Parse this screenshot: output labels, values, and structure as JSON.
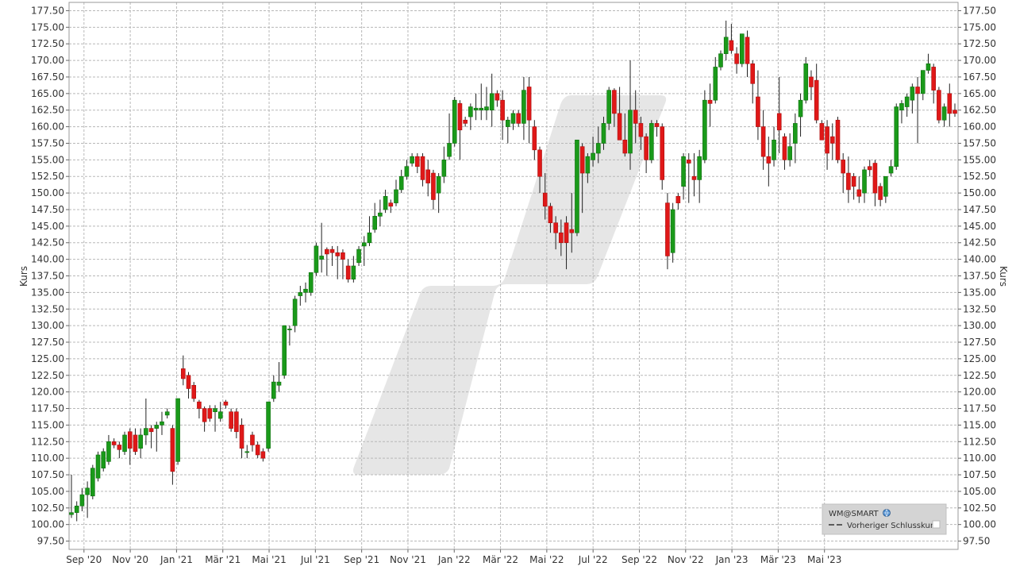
{
  "chart_data": {
    "type": "candlestick",
    "ylabel_left": "Kurs",
    "ylabel_right": "Kurs",
    "ylim": [
      96.25,
      178.75
    ],
    "y_ticks": [
      97.5,
      100.0,
      102.5,
      105.0,
      107.5,
      110.0,
      112.5,
      115.0,
      117.5,
      120.0,
      122.5,
      125.0,
      127.5,
      130.0,
      132.5,
      135.0,
      137.5,
      140.0,
      142.5,
      145.0,
      147.5,
      150.0,
      152.5,
      155.0,
      157.5,
      160.0,
      162.5,
      165.0,
      167.5,
      170.0,
      172.5,
      175.0,
      177.5
    ],
    "x_ticks": [
      "Sep '20",
      "Nov '20",
      "Jan '21",
      "Mär '21",
      "Mai '21",
      "Jul '21",
      "Sep '21",
      "Nov '21",
      "Jan '22",
      "Mär '22",
      "Mai '22",
      "Jul '22",
      "Sep '22",
      "Nov '22",
      "Jan '23",
      "Mär '23",
      "Mai '23"
    ],
    "grid": true,
    "legend_position": "bottom-right",
    "legend": {
      "title": "WM@SMART",
      "items": [
        "Vorheriger Schlusskurs"
      ]
    },
    "colors": {
      "up": "#1a9a1a",
      "down": "#e01818",
      "grid": "#b8b8b8",
      "background": "#ffffff",
      "text": "#333333"
    },
    "weekly_ohlc": [
      [
        101.5,
        107.5,
        101.0,
        101.8
      ],
      [
        101.8,
        103.5,
        100.5,
        102.8
      ],
      [
        102.8,
        105.5,
        102.0,
        104.5
      ],
      [
        104.5,
        106.5,
        101.0,
        105.5
      ],
      [
        104.3,
        109.0,
        103.8,
        108.5
      ],
      [
        107.0,
        111.0,
        106.5,
        110.5
      ],
      [
        108.5,
        111.5,
        108.0,
        111.0
      ],
      [
        109.5,
        113.5,
        109.0,
        112.5
      ],
      [
        112.5,
        113.0,
        111.5,
        112.0
      ],
      [
        112.0,
        112.5,
        110.0,
        111.3
      ],
      [
        111.0,
        114.0,
        110.5,
        113.5
      ],
      [
        114.0,
        114.5,
        109.0,
        111.5
      ],
      [
        113.5,
        114.5,
        110.5,
        111.0
      ],
      [
        111.5,
        114.5,
        110.0,
        113.5
      ],
      [
        113.5,
        119.0,
        112.0,
        114.5
      ],
      [
        114.5,
        115.0,
        111.5,
        114.0
      ],
      [
        114.5,
        115.5,
        111.0,
        115.0
      ],
      [
        115.0,
        117.0,
        113.5,
        115.5
      ],
      [
        116.5,
        117.5,
        116.0,
        117.0
      ],
      [
        114.5,
        115.0,
        106.0,
        108.0
      ],
      [
        109.5,
        119.0,
        109.0,
        119.0
      ],
      [
        123.5,
        125.5,
        121.0,
        122.0
      ],
      [
        122.5,
        123.0,
        119.0,
        120.5
      ],
      [
        121.0,
        121.5,
        118.5,
        119.0
      ],
      [
        118.5,
        118.8,
        116.0,
        117.5
      ],
      [
        117.5,
        117.8,
        114.0,
        115.5
      ],
      [
        117.5,
        118.0,
        115.5,
        116.0
      ],
      [
        117.0,
        118.0,
        114.0,
        117.5
      ],
      [
        116.0,
        118.5,
        115.5,
        117.0
      ],
      [
        118.5,
        118.8,
        117.5,
        118.0
      ],
      [
        117.0,
        117.5,
        114.0,
        114.5
      ],
      [
        117.0,
        117.5,
        113.0,
        114.0
      ],
      [
        115.0,
        116.0,
        110.0,
        111.5
      ],
      [
        111.0,
        112.0,
        110.0,
        111.0
      ],
      [
        113.5,
        114.0,
        111.0,
        112.0
      ],
      [
        112.0,
        112.5,
        110.0,
        110.5
      ],
      [
        111.0,
        111.5,
        109.5,
        110.0
      ],
      [
        111.5,
        118.5,
        111.0,
        118.5
      ],
      [
        119.0,
        122.5,
        118.5,
        121.5
      ],
      [
        121.0,
        124.5,
        120.0,
        121.5
      ],
      [
        122.5,
        130.0,
        122.0,
        130.0
      ],
      [
        129.5,
        130.0,
        127.0,
        129.5
      ],
      [
        130.0,
        134.5,
        129.0,
        134.0
      ],
      [
        134.5,
        136.0,
        133.0,
        135.0
      ],
      [
        135.0,
        136.5,
        133.5,
        135.5
      ],
      [
        135.0,
        138.0,
        134.5,
        138.0
      ],
      [
        138.0,
        142.5,
        137.5,
        142.0
      ],
      [
        140.0,
        145.5,
        138.0,
        140.5
      ],
      [
        141.5,
        141.8,
        137.5,
        140.8
      ],
      [
        141.5,
        142.0,
        139.0,
        141.0
      ],
      [
        141.0,
        142.0,
        137.0,
        140.5
      ],
      [
        141.0,
        141.5,
        137.0,
        140.0
      ],
      [
        139.0,
        140.0,
        136.5,
        137.0
      ],
      [
        137.0,
        140.5,
        136.5,
        139.0
      ],
      [
        139.5,
        142.0,
        139.0,
        141.5
      ],
      [
        142.0,
        143.5,
        139.0,
        142.5
      ],
      [
        142.5,
        146.5,
        142.0,
        144.0
      ],
      [
        144.5,
        148.5,
        144.0,
        146.5
      ],
      [
        146.5,
        149.0,
        145.0,
        147.0
      ],
      [
        147.5,
        150.5,
        147.0,
        149.5
      ],
      [
        148.5,
        149.0,
        147.0,
        148.0
      ],
      [
        148.5,
        152.0,
        148.0,
        150.5
      ],
      [
        150.5,
        153.5,
        150.0,
        152.5
      ],
      [
        152.5,
        155.0,
        152.0,
        154.0
      ],
      [
        154.5,
        156.0,
        154.0,
        155.5
      ],
      [
        155.5,
        156.0,
        153.0,
        154.0
      ],
      [
        155.5,
        156.0,
        151.0,
        152.0
      ],
      [
        153.5,
        155.0,
        149.5,
        151.5
      ],
      [
        153.0,
        153.5,
        147.5,
        149.0
      ],
      [
        150.0,
        153.0,
        147.0,
        152.5
      ],
      [
        152.5,
        157.0,
        151.5,
        155.0
      ],
      [
        155.5,
        162.0,
        155.0,
        157.5
      ],
      [
        157.5,
        164.5,
        157.0,
        164.0
      ],
      [
        163.5,
        164.0,
        155.0,
        159.5
      ],
      [
        161.0,
        161.5,
        160.0,
        160.5
      ],
      [
        161.5,
        163.5,
        159.5,
        163.0
      ],
      [
        162.5,
        165.0,
        161.0,
        162.8
      ],
      [
        162.5,
        166.5,
        161.0,
        162.8
      ],
      [
        162.5,
        166.0,
        161.0,
        163.0
      ],
      [
        162.5,
        168.0,
        160.0,
        165.0
      ],
      [
        165.0,
        165.5,
        163.0,
        164.0
      ],
      [
        164.0,
        165.5,
        158.0,
        161.0
      ],
      [
        160.0,
        161.5,
        157.5,
        161.0
      ],
      [
        160.5,
        162.5,
        159.5,
        162.0
      ],
      [
        162.0,
        162.5,
        160.0,
        160.5
      ],
      [
        160.5,
        167.5,
        158.0,
        165.5
      ],
      [
        166.0,
        167.5,
        157.5,
        161.0
      ],
      [
        160.0,
        161.0,
        155.0,
        156.5
      ],
      [
        156.5,
        157.0,
        150.0,
        152.5
      ],
      [
        150.0,
        153.0,
        146.0,
        148.0
      ],
      [
        148.0,
        148.5,
        144.0,
        145.5
      ],
      [
        145.5,
        146.5,
        141.5,
        144.0
      ],
      [
        144.0,
        146.0,
        140.5,
        142.5
      ],
      [
        145.5,
        146.5,
        138.5,
        142.5
      ],
      [
        144.5,
        150.0,
        141.0,
        144.0
      ],
      [
        144.0,
        158.0,
        143.5,
        158.0
      ],
      [
        157.0,
        157.5,
        147.0,
        153.0
      ],
      [
        153.0,
        156.0,
        151.5,
        155.5
      ],
      [
        155.0,
        158.5,
        154.0,
        156.0
      ],
      [
        156.0,
        160.0,
        154.5,
        157.5
      ],
      [
        157.5,
        161.5,
        156.5,
        160.5
      ],
      [
        160.5,
        166.0,
        159.5,
        165.5
      ],
      [
        165.5,
        165.8,
        160.0,
        162.0
      ],
      [
        162.0,
        166.0,
        160.0,
        158.0
      ],
      [
        158.0,
        162.0,
        155.5,
        156.0
      ],
      [
        156.0,
        170.0,
        153.5,
        162.5
      ],
      [
        162.5,
        165.5,
        157.5,
        160.5
      ],
      [
        160.5,
        161.5,
        156.5,
        158.5
      ],
      [
        158.5,
        159.0,
        153.0,
        155.0
      ],
      [
        155.0,
        161.0,
        154.5,
        160.5
      ],
      [
        160.5,
        161.0,
        158.5,
        160.0
      ],
      [
        160.0,
        160.5,
        150.5,
        152.0
      ],
      [
        148.5,
        150.0,
        138.5,
        140.5
      ],
      [
        141.0,
        148.5,
        139.5,
        147.5
      ],
      [
        149.5,
        150.0,
        147.5,
        148.5
      ],
      [
        151.0,
        156.0,
        149.0,
        155.5
      ],
      [
        155.0,
        156.0,
        148.5,
        154.5
      ],
      [
        152.5,
        156.0,
        149.5,
        152.0
      ],
      [
        152.0,
        156.5,
        148.5,
        155.5
      ],
      [
        155.0,
        165.5,
        154.5,
        164.0
      ],
      [
        164.0,
        166.5,
        160.0,
        163.5
      ],
      [
        164.0,
        170.5,
        163.5,
        169.0
      ],
      [
        169.0,
        171.5,
        168.5,
        171.0
      ],
      [
        171.0,
        176.0,
        170.0,
        173.5
      ],
      [
        173.0,
        175.5,
        171.0,
        171.5
      ],
      [
        171.0,
        172.0,
        168.0,
        169.5
      ],
      [
        169.5,
        173.0,
        169.0,
        174.0
      ],
      [
        173.5,
        174.5,
        167.5,
        169.5
      ],
      [
        169.5,
        170.0,
        163.5,
        166.5
      ],
      [
        164.5,
        168.5,
        158.0,
        160.0
      ],
      [
        160.0,
        162.5,
        153.5,
        155.5
      ],
      [
        155.5,
        158.5,
        151.0,
        154.5
      ],
      [
        155.0,
        160.0,
        154.0,
        158.0
      ],
      [
        162.0,
        167.5,
        156.0,
        159.5
      ],
      [
        158.5,
        159.0,
        153.5,
        155.0
      ],
      [
        155.0,
        159.0,
        154.0,
        157.0
      ],
      [
        157.5,
        162.0,
        154.5,
        160.5
      ],
      [
        161.5,
        165.0,
        158.5,
        164.0
      ],
      [
        164.0,
        170.5,
        163.5,
        169.5
      ],
      [
        167.5,
        168.5,
        164.0,
        166.0
      ],
      [
        167.0,
        169.5,
        160.5,
        161.0
      ],
      [
        160.5,
        161.0,
        158.5,
        158.0
      ],
      [
        160.0,
        161.0,
        153.5,
        156.0
      ],
      [
        158.5,
        160.5,
        155.0,
        157.5
      ],
      [
        161.0,
        161.5,
        154.5,
        155.0
      ],
      [
        155.0,
        156.0,
        150.0,
        153.0
      ],
      [
        153.0,
        155.5,
        148.5,
        150.5
      ],
      [
        152.5,
        153.0,
        149.0,
        151.0
      ],
      [
        150.5,
        152.5,
        148.5,
        149.5
      ],
      [
        150.0,
        154.0,
        148.5,
        153.5
      ],
      [
        154.0,
        155.0,
        152.5,
        153.5
      ],
      [
        154.5,
        155.0,
        148.0,
        150.0
      ],
      [
        151.0,
        151.5,
        148.0,
        149.0
      ],
      [
        149.5,
        152.5,
        148.5,
        152.5
      ],
      [
        153.0,
        155.0,
        152.5,
        154.0
      ],
      [
        154.0,
        163.5,
        153.5,
        163.0
      ],
      [
        162.5,
        164.0,
        160.5,
        163.5
      ],
      [
        163.0,
        165.0,
        161.5,
        164.5
      ],
      [
        164.0,
        166.5,
        162.0,
        166.0
      ],
      [
        166.0,
        167.5,
        157.5,
        165.0
      ],
      [
        165.0,
        168.5,
        164.0,
        168.5
      ],
      [
        168.5,
        171.0,
        168.0,
        169.5
      ],
      [
        169.0,
        169.5,
        163.5,
        165.5
      ],
      [
        165.5,
        166.0,
        160.5,
        161.0
      ],
      [
        161.0,
        163.5,
        160.0,
        163.0
      ],
      [
        165.0,
        166.5,
        160.0,
        162.0
      ],
      [
        162.5,
        163.5,
        161.5,
        162.0
      ]
    ]
  }
}
